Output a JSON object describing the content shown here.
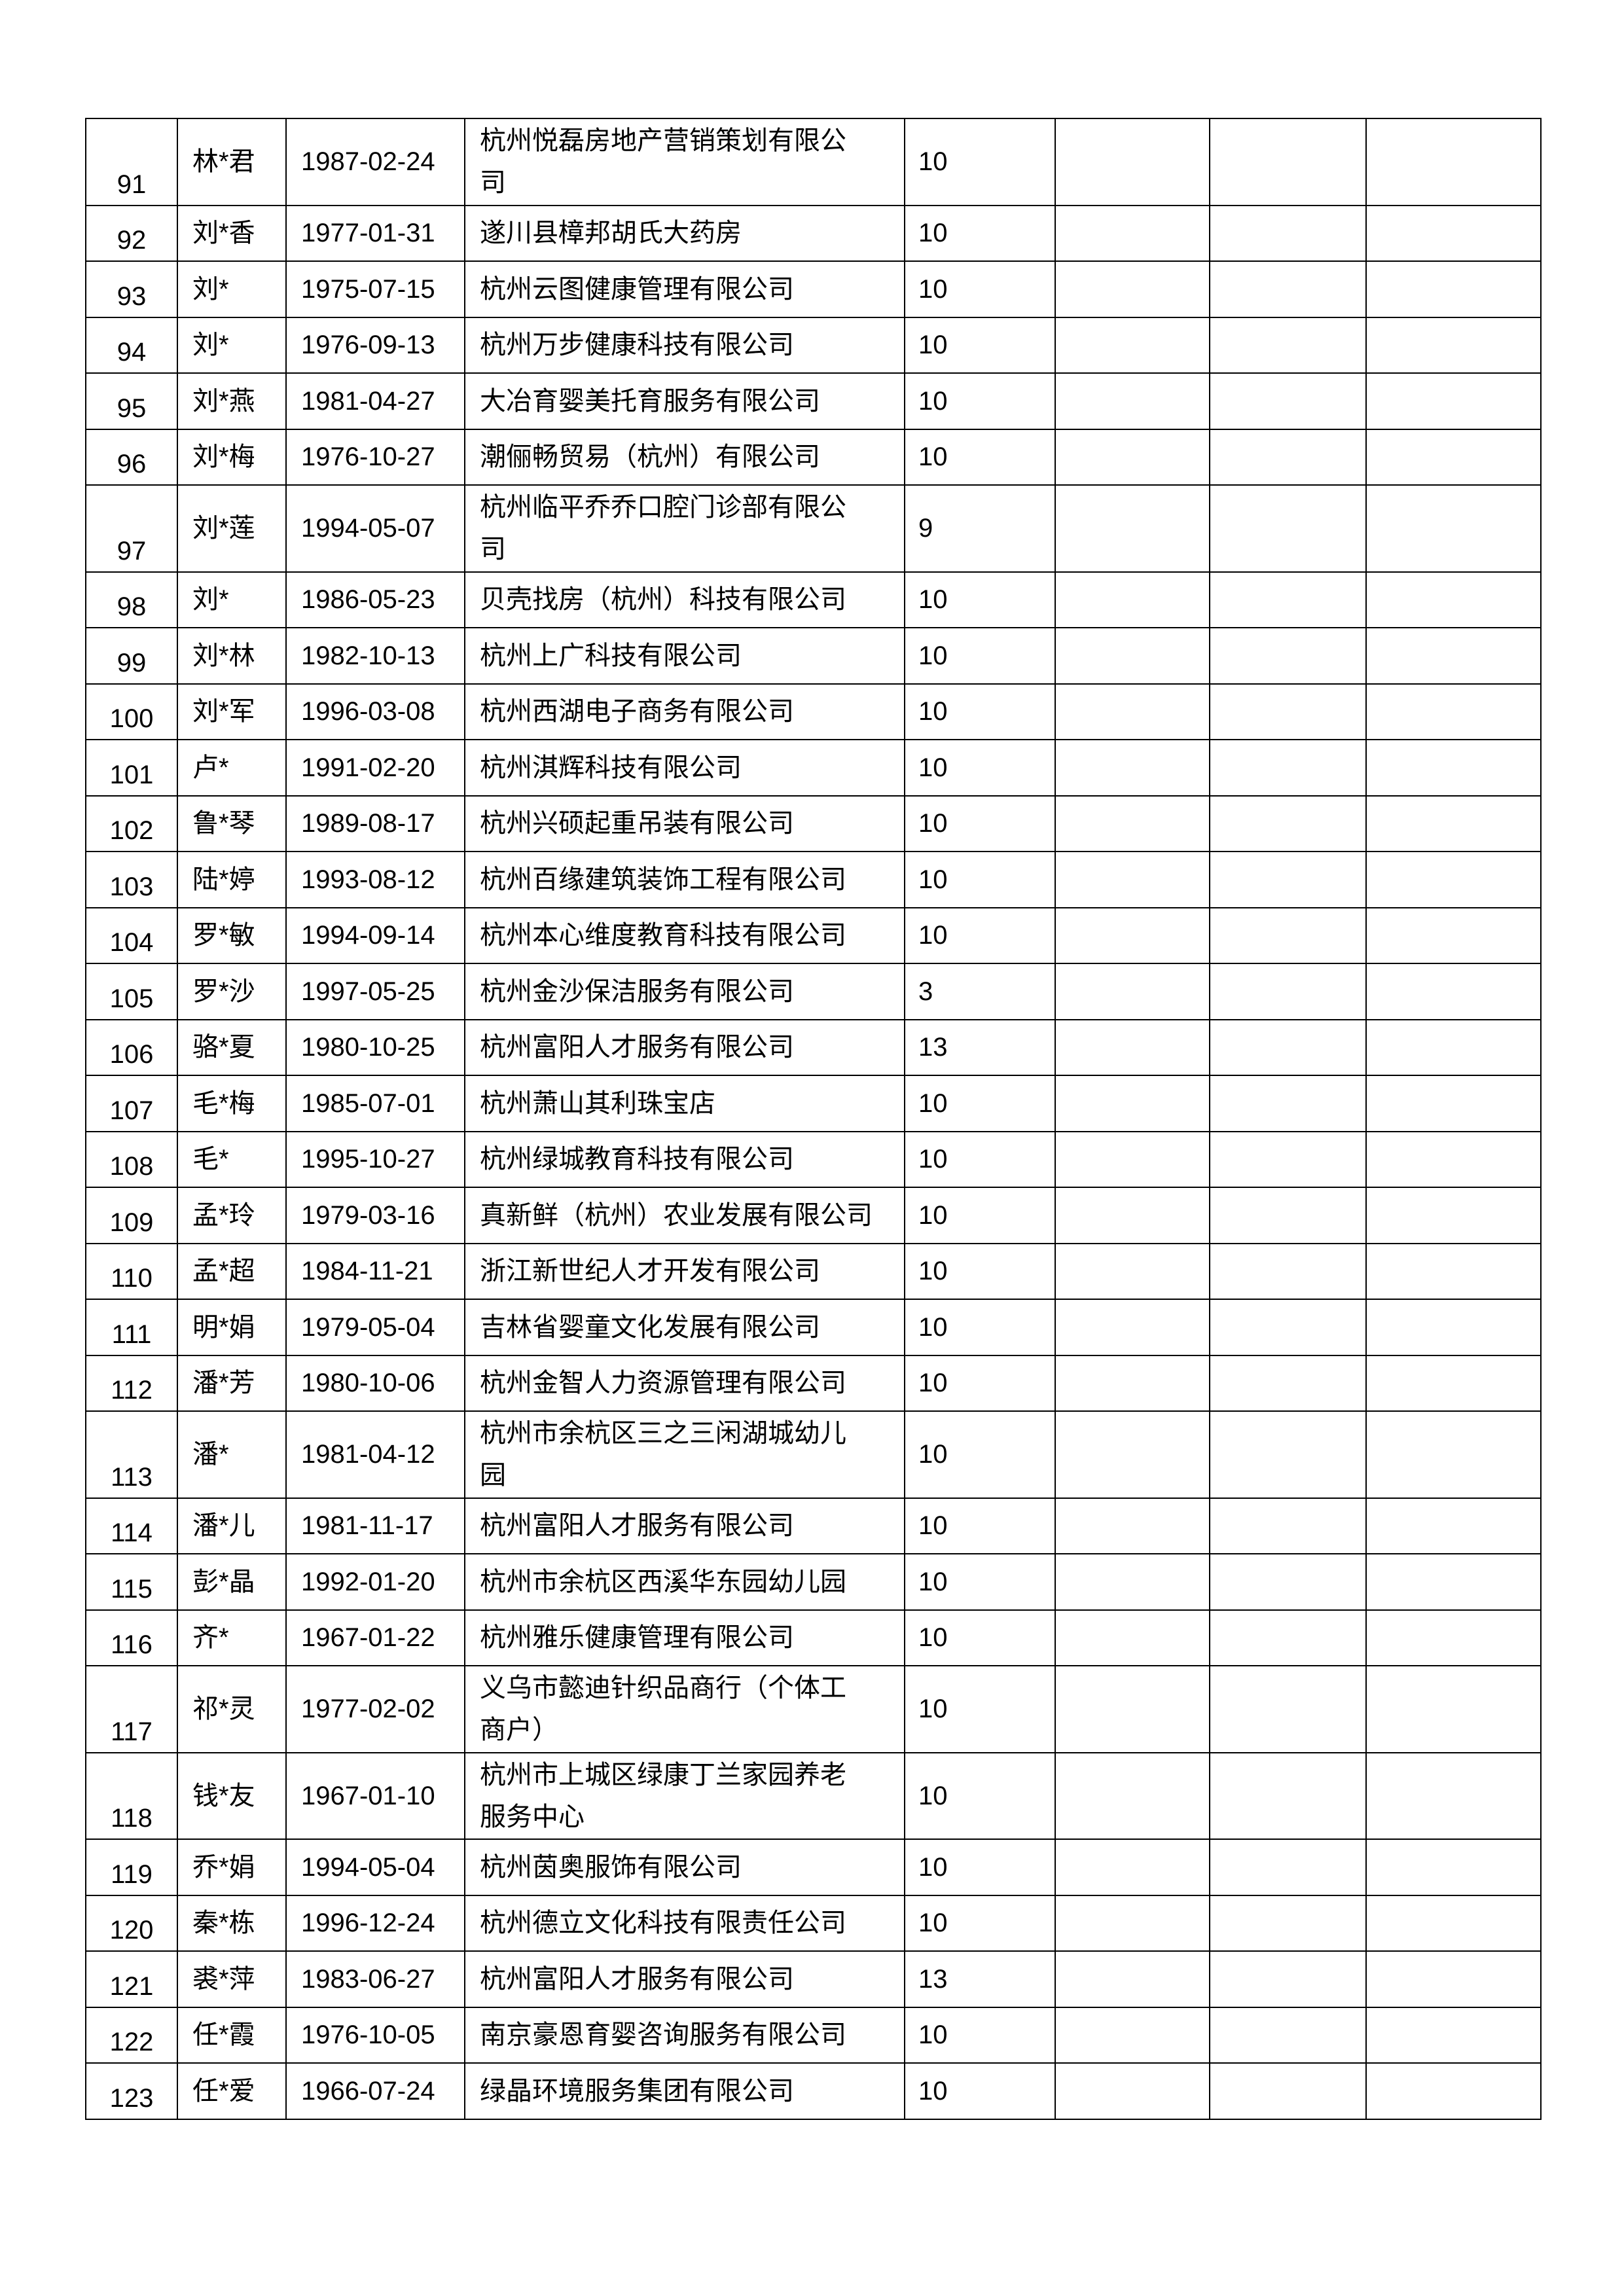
{
  "rows": [
    {
      "no": "91",
      "name": "林*君",
      "date": "1987-02-24",
      "company": "杭州悦磊房地产营销策划有限公司",
      "score": "10"
    },
    {
      "no": "92",
      "name": "刘*香",
      "date": "1977-01-31",
      "company": "遂川县樟邦胡氏大药房",
      "score": "10"
    },
    {
      "no": "93",
      "name": "刘*",
      "date": "1975-07-15",
      "company": "杭州云图健康管理有限公司",
      "score": "10"
    },
    {
      "no": "94",
      "name": "刘*",
      "date": "1976-09-13",
      "company": "杭州万步健康科技有限公司",
      "score": "10"
    },
    {
      "no": "95",
      "name": "刘*燕",
      "date": "1981-04-27",
      "company": "大冶育婴美托育服务有限公司",
      "score": "10"
    },
    {
      "no": "96",
      "name": "刘*梅",
      "date": "1976-10-27",
      "company": "潮俪畅贸易（杭州）有限公司",
      "score": "10"
    },
    {
      "no": "97",
      "name": "刘*莲",
      "date": "1994-05-07",
      "company": "杭州临平乔乔口腔门诊部有限公司",
      "score": "9"
    },
    {
      "no": "98",
      "name": "刘*",
      "date": "1986-05-23",
      "company": "贝壳找房（杭州）科技有限公司",
      "score": "10"
    },
    {
      "no": "99",
      "name": "刘*林",
      "date": "1982-10-13",
      "company": "杭州上广科技有限公司",
      "score": "10"
    },
    {
      "no": "100",
      "name": "刘*军",
      "date": "1996-03-08",
      "company": "杭州西湖电子商务有限公司",
      "score": "10"
    },
    {
      "no": "101",
      "name": "卢*",
      "date": "1991-02-20",
      "company": "杭州淇辉科技有限公司",
      "score": "10"
    },
    {
      "no": "102",
      "name": "鲁*琴",
      "date": "1989-08-17",
      "company": "杭州兴硕起重吊装有限公司",
      "score": "10"
    },
    {
      "no": "103",
      "name": "陆*婷",
      "date": "1993-08-12",
      "company": "杭州百缘建筑装饰工程有限公司",
      "score": "10"
    },
    {
      "no": "104",
      "name": "罗*敏",
      "date": "1994-09-14",
      "company": "杭州本心维度教育科技有限公司",
      "score": "10"
    },
    {
      "no": "105",
      "name": "罗*沙",
      "date": "1997-05-25",
      "company": "杭州金沙保洁服务有限公司",
      "score": "3"
    },
    {
      "no": "106",
      "name": "骆*夏",
      "date": "1980-10-25",
      "company": "杭州富阳人才服务有限公司",
      "score": "13"
    },
    {
      "no": "107",
      "name": "毛*梅",
      "date": "1985-07-01",
      "company": "杭州萧山其利珠宝店",
      "score": "10"
    },
    {
      "no": "108",
      "name": "毛*",
      "date": "1995-10-27",
      "company": "杭州绿城教育科技有限公司",
      "score": "10"
    },
    {
      "no": "109",
      "name": "孟*玲",
      "date": "1979-03-16",
      "company": "真新鲜（杭州）农业发展有限公司",
      "score": "10"
    },
    {
      "no": "110",
      "name": "孟*超",
      "date": "1984-11-21",
      "company": "浙江新世纪人才开发有限公司",
      "score": "10"
    },
    {
      "no": "111",
      "name": "明*娟",
      "date": "1979-05-04",
      "company": "吉林省婴童文化发展有限公司",
      "score": "10"
    },
    {
      "no": "112",
      "name": "潘*芳",
      "date": "1980-10-06",
      "company": "杭州金智人力资源管理有限公司",
      "score": "10"
    },
    {
      "no": "113",
      "name": "潘*",
      "date": "1981-04-12",
      "company": "杭州市余杭区三之三闲湖城幼儿园",
      "score": "10"
    },
    {
      "no": "114",
      "name": "潘*儿",
      "date": "1981-11-17",
      "company": "杭州富阳人才服务有限公司",
      "score": "10"
    },
    {
      "no": "115",
      "name": "彭*晶",
      "date": "1992-01-20",
      "company": "杭州市余杭区西溪华东园幼儿园",
      "score": "10"
    },
    {
      "no": "116",
      "name": "齐*",
      "date": "1967-01-22",
      "company": "杭州雅乐健康管理有限公司",
      "score": "10"
    },
    {
      "no": "117",
      "name": "祁*灵",
      "date": "1977-02-02",
      "company": "义乌市懿迪针织品商行（个体工商户）",
      "score": "10"
    },
    {
      "no": "118",
      "name": "钱*友",
      "date": "1967-01-10",
      "company": "杭州市上城区绿康丁兰家园养老服务中心",
      "score": "10"
    },
    {
      "no": "119",
      "name": "乔*娟",
      "date": "1994-05-04",
      "company": "杭州茵奥服饰有限公司",
      "score": "10"
    },
    {
      "no": "120",
      "name": "秦*栋",
      "date": "1996-12-24",
      "company": "杭州德立文化科技有限责任公司",
      "score": "10"
    },
    {
      "no": "121",
      "name": "裘*萍",
      "date": "1983-06-27",
      "company": "杭州富阳人才服务有限公司",
      "score": "13"
    },
    {
      "no": "122",
      "name": "任*霞",
      "date": "1976-10-05",
      "company": "南京豪恩育婴咨询服务有限公司",
      "score": "10"
    },
    {
      "no": "123",
      "name": "任*爱",
      "date": "1966-07-24",
      "company": "绿晶环境服务集团有限公司",
      "score": "10"
    }
  ]
}
